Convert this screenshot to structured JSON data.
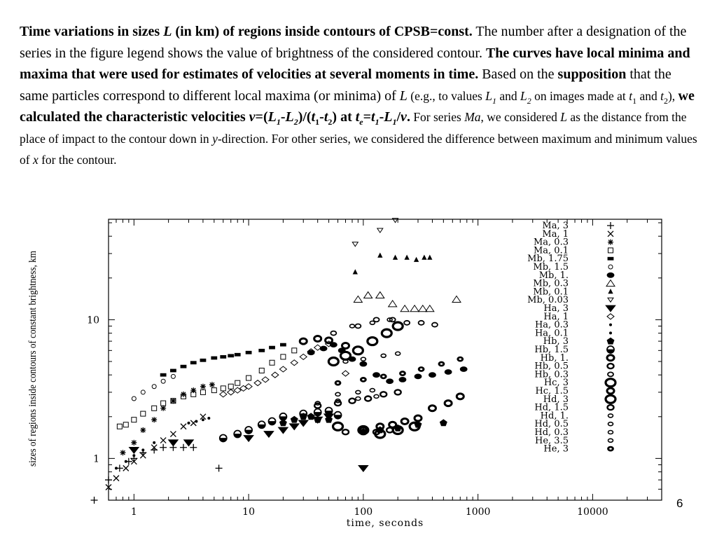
{
  "caption": {
    "p1": "Time variations in sizes ",
    "p2": "L",
    "p3": " (in km) of regions inside contours of CPSB=const.",
    "p4": " The number after a designation of the series in the figure legend shows the value of brightness of the considered contour. ",
    "p5": "The curves have local minima and maxima that were used for estimates of velocities at several moments in time.",
    "p6": " Based on the ",
    "p7": "supposition",
    "p8": " that the same particles correspond to different local maxima (or minima) of ",
    "p9": "L",
    "p10": " (e.g., to values ",
    "p11": "L",
    "p12": "1",
    "p13": " and ",
    "p14": "L",
    "p15": "2",
    "p16": " on images made at ",
    "p17": "t",
    "p18": "1",
    "p19": " and ",
    "p20": "t",
    "p21": "2",
    "p22": "), ",
    "p23": "we calculated the characteristic velocities ",
    "p24": "v",
    "p25": "=(",
    "p26": "L",
    "p27": "1",
    "p28": "-",
    "p29": "L",
    "p30": "2",
    "p31": ")/(",
    "p32": "t",
    "p33": "1",
    "p34": "-",
    "p35": "t",
    "p36": "2",
    "p37": ") at ",
    "p38": "t",
    "p39": "e",
    "p40": "=",
    "p41": "t",
    "p42": "1",
    "p43": "-",
    "p44": "L",
    "p45": "1",
    "p46": "/",
    "p47": "v",
    "p48": ".",
    "p49": " For series ",
    "p50": "Ma",
    "p51": ", we considered ",
    "p52": "L",
    "p53": " as the distance from the place of impact to the contour down in ",
    "p54": "y",
    "p55": "-direction. For other series, we considered the difference between maximum and minimum values of ",
    "p56": "x",
    "p57": " for the contour."
  },
  "page_number": "6",
  "chart_data": {
    "type": "scatter",
    "xscale": "log",
    "yscale": "log",
    "xlim": [
      0.6,
      40000
    ],
    "ylim": [
      0.5,
      53
    ],
    "xlabel": "time, seconds",
    "ylabel": "sizes of regions inside contours of constant brightness, km",
    "xticks": [
      1,
      10,
      100,
      1000,
      10000
    ],
    "xtick_labels": [
      "1",
      "10",
      "100",
      "1000",
      "10000"
    ],
    "yticks": [
      1,
      10
    ],
    "ytick_labels": [
      "1",
      "10"
    ],
    "grid": false,
    "legend_position": "right",
    "series": [
      {
        "name": "Ma, 3",
        "marker": "plus",
        "x": [
          0.45,
          0.6,
          0.75,
          0.9,
          1.0,
          1.2,
          1.5,
          1.8,
          2.2,
          2.7,
          3.3,
          5.5
        ],
        "y": [
          0.5,
          0.7,
          0.85,
          0.95,
          1.0,
          1.1,
          1.15,
          1.2,
          1.2,
          1.2,
          1.2,
          0.85
        ]
      },
      {
        "name": "Ma, 1",
        "marker": "cross",
        "x": [
          0.6,
          0.7,
          0.85,
          1.0,
          1.2,
          1.5,
          1.8,
          2.2,
          2.7,
          3.3,
          4.0
        ],
        "y": [
          0.62,
          0.72,
          0.85,
          0.95,
          1.05,
          1.2,
          1.35,
          1.5,
          1.7,
          1.8,
          2.0
        ]
      },
      {
        "name": "Ma, 0.3",
        "marker": "star",
        "x": [
          0.8,
          1.0,
          1.2,
          1.5,
          1.8,
          2.2,
          2.7,
          3.3,
          4.0,
          4.8
        ],
        "y": [
          1.1,
          1.3,
          1.6,
          1.9,
          2.3,
          2.6,
          2.9,
          3.1,
          3.3,
          3.4
        ]
      },
      {
        "name": "Ma, 0.1",
        "marker": "square-open",
        "x": [
          0.75,
          0.85,
          1.0,
          1.2,
          1.5,
          1.8,
          2.2,
          2.7,
          3.3,
          4.0,
          5.0,
          6.0,
          7.0,
          8.0,
          10.0,
          13.0,
          16.0,
          20.0,
          25.0
        ],
        "y": [
          1.7,
          1.75,
          1.9,
          2.1,
          2.3,
          2.5,
          2.6,
          2.8,
          2.9,
          3.0,
          3.1,
          3.2,
          3.3,
          3.5,
          3.8,
          4.3,
          4.9,
          5.4,
          6.0
        ]
      },
      {
        "name": "Mb, 1.75",
        "marker": "rect-filled",
        "x": [
          1.8,
          2.2,
          2.7,
          3.3,
          4.0,
          5.0,
          6.0,
          7.0,
          8.0,
          10.0,
          13.0,
          16.0,
          20.0
        ],
        "y": [
          4.0,
          4.3,
          4.6,
          4.9,
          5.1,
          5.3,
          5.4,
          5.5,
          5.6,
          5.8,
          6.0,
          6.3,
          6.6
        ]
      },
      {
        "name": "Mb, 1.5",
        "marker": "circle-open",
        "x": [
          1.0,
          1.2,
          1.5,
          1.8,
          2.2
        ],
        "y": [
          2.7,
          3.0,
          3.3,
          3.6,
          3.9
        ]
      },
      {
        "name": "Mb, 1.",
        "marker": "circle-filled",
        "x": [
          35.0,
          45.0,
          55.0,
          65.0,
          80.0,
          100.0,
          130.0,
          170.0,
          220.0,
          300.0,
          400.0,
          550.0,
          750.0
        ],
        "y": [
          5.8,
          6.2,
          6.6,
          6.0,
          5.2,
          4.8,
          4.0,
          3.6,
          3.7,
          3.9,
          4.0,
          4.2,
          4.4
        ]
      },
      {
        "name": "Mb, 0.3",
        "marker": "triangle-open",
        "x": [
          90.0,
          110.0,
          140.0,
          180.0,
          230.0,
          280.0,
          330.0,
          380.0,
          650.0
        ],
        "y": [
          14.0,
          15.0,
          15.0,
          13.0,
          12.0,
          12.0,
          12.0,
          12.0,
          14.0
        ]
      },
      {
        "name": "Mb, 0.1",
        "marker": "triangle-filled",
        "x": [
          85.0,
          140.0,
          190.0,
          240.0,
          290.0,
          340.0,
          380.0
        ],
        "y": [
          22.0,
          29.0,
          28.0,
          28.0,
          27.0,
          28.0,
          28.0
        ]
      },
      {
        "name": "Mb, 0.03",
        "marker": "triangle-down-open",
        "x": [
          85.0,
          140.0,
          190.0,
          230.0
        ],
        "y": [
          35.0,
          44.0,
          52.0,
          54.0
        ]
      },
      {
        "name": "Ha, 3",
        "marker": "triangle-down-filled",
        "x": [
          1.0,
          2.2,
          3.0,
          10.0,
          15.0,
          20.0,
          25.0,
          30.0,
          40.0,
          50.0,
          100.0
        ],
        "y": [
          1.15,
          1.3,
          1.3,
          1.4,
          1.5,
          1.6,
          1.7,
          1.8,
          1.9,
          2.0,
          0.85
        ]
      },
      {
        "name": "Ha, 1",
        "marker": "diamond-open",
        "x": [
          6.0,
          7.0,
          8.0,
          9.0,
          10.0,
          12.0,
          14.0,
          17.0,
          20.0,
          25.0,
          30.0,
          35.0,
          40.0,
          50.0,
          70.0
        ],
        "y": [
          2.9,
          3.0,
          3.1,
          3.2,
          3.3,
          3.5,
          3.7,
          4.0,
          4.4,
          4.9,
          5.4,
          5.9,
          6.3,
          6.7,
          4.1
        ]
      },
      {
        "name": "Ha, 0.3",
        "marker": "dot",
        "x": [
          3.0,
          3.5,
          4.0,
          4.5
        ],
        "y": [
          1.8,
          1.85,
          1.9,
          1.95
        ]
      },
      {
        "name": "Ha, 0.1",
        "marker": "dot",
        "x": [
          0.7,
          0.85,
          1.0,
          1.2,
          1.5
        ],
        "y": [
          0.85,
          0.95,
          1.05,
          1.15,
          1.3
        ]
      },
      {
        "name": "Hb, 3",
        "marker": "pentagon-filled",
        "x": [
          20.0,
          25.0,
          30.0,
          35.0,
          40.0,
          50.0,
          100.0,
          140.0,
          200.0,
          300.0,
          500.0
        ],
        "y": [
          1.8,
          1.9,
          2.0,
          2.0,
          1.9,
          1.9,
          1.55,
          1.6,
          1.65,
          1.75,
          1.8
        ]
      },
      {
        "name": "Hb, 1.5",
        "marker": "half-circle",
        "x": [
          6.0,
          8.0,
          10.0,
          13.0,
          16.0,
          20.0,
          30.0,
          40.0,
          50.0,
          60.0
        ],
        "y": [
          1.4,
          1.5,
          1.6,
          1.75,
          1.85,
          2.0,
          2.1,
          2.15,
          2.2,
          2.05
        ]
      },
      {
        "name": "Hb, 1.",
        "marker": "ring-thick",
        "x": [
          100.0,
          140.0,
          180.0,
          230.0,
          300.0,
          400.0,
          550.0,
          700.0
        ],
        "y": [
          1.6,
          1.7,
          1.75,
          1.85,
          1.95,
          2.3,
          2.5,
          2.8
        ]
      },
      {
        "name": "Hb, 0.5",
        "marker": "ring-med",
        "x": [
          40.0,
          60.0,
          80.0,
          110.0,
          150.0,
          200.0
        ],
        "y": [
          2.4,
          2.5,
          2.6,
          2.7,
          2.9,
          3.0
        ]
      },
      {
        "name": "Hb, 0.3",
        "marker": "ring",
        "x": [
          55.0,
          90.0,
          130.0,
          180.0,
          240.0,
          320.0,
          420.0
        ],
        "y": [
          8.0,
          9.0,
          10.0,
          10.0,
          9.5,
          9.5,
          9.2
        ]
      },
      {
        "name": "Hc, 3",
        "marker": "ring-big",
        "x": [
          55.0,
          70.0,
          90.0,
          120.0,
          160.0,
          200.0
        ],
        "y": [
          5.0,
          5.5,
          6.0,
          7.0,
          8.0,
          9.0
        ]
      },
      {
        "name": "Hc, 1.5",
        "marker": "ring-thick",
        "x": [
          30.0,
          40.0,
          50.0,
          70.0
        ],
        "y": [
          7.0,
          7.3,
          7.1,
          6.5
        ]
      },
      {
        "name": "Hd, 3",
        "marker": "ring-big",
        "x": [
          60.0,
          100.0,
          140.0,
          200.0,
          280.0
        ],
        "y": [
          1.7,
          1.6,
          1.5,
          1.6,
          1.7
        ]
      },
      {
        "name": "Hd, 1.5",
        "marker": "ring-med",
        "x": [
          70.0,
          100.0,
          130.0,
          170.0
        ],
        "y": [
          1.55,
          1.55,
          1.55,
          1.6
        ]
      },
      {
        "name": "Hd, 1.",
        "marker": "ring-small",
        "x": [
          60.0,
          90.0,
          120.0
        ],
        "y": [
          2.9,
          3.0,
          3.1
        ]
      },
      {
        "name": "Hd, 0.5",
        "marker": "ring-small",
        "x": [
          70.0,
          100.0,
          150.0,
          200.0
        ],
        "y": [
          5.0,
          5.2,
          5.5,
          5.7
        ]
      },
      {
        "name": "Hd, 0.3",
        "marker": "ring-small",
        "x": [
          80.0,
          120.0,
          170.0
        ],
        "y": [
          9.0,
          9.5,
          10.0
        ]
      },
      {
        "name": "He, 3.5",
        "marker": "ring-small",
        "x": [
          40.0,
          60.0,
          90.0,
          130.0
        ],
        "y": [
          2.5,
          2.6,
          2.7,
          2.8
        ]
      },
      {
        "name": "He, 3",
        "marker": "ring-filled",
        "x": [
          60.0,
          100.0,
          150.0,
          220.0,
          320.0,
          480.0,
          700.0
        ],
        "y": [
          3.5,
          3.7,
          3.9,
          4.1,
          4.4,
          4.8,
          5.2
        ]
      }
    ]
  }
}
